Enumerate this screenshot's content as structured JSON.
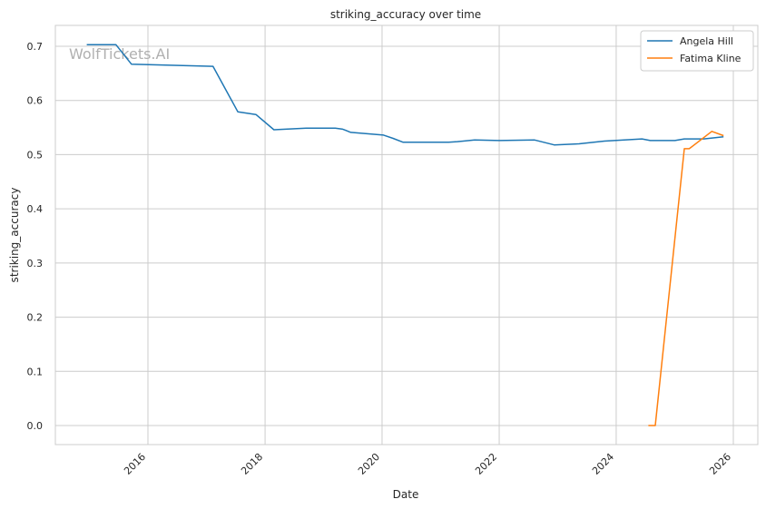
{
  "chart_data": {
    "type": "line",
    "title": "striking_accuracy over time",
    "xlabel": "Date",
    "ylabel": "striking_accuracy",
    "x_ticks": [
      "2016",
      "2018",
      "2020",
      "2022",
      "2024",
      "2026"
    ],
    "y_ticks": [
      "0.0",
      "0.1",
      "0.2",
      "0.3",
      "0.4",
      "0.5",
      "0.6",
      "0.7"
    ],
    "watermark": "WolfTickets.AI",
    "legend_position": "top-right",
    "grid": true,
    "series": [
      {
        "name": "Angela Hill",
        "color": "#1f77b4",
        "points": [
          [
            "2014-12-15",
            0.703
          ],
          [
            "2015-06-15",
            0.703
          ],
          [
            "2015-09-20",
            0.667
          ],
          [
            "2017-02-10",
            0.663
          ],
          [
            "2017-07-15",
            0.579
          ],
          [
            "2017-11-05",
            0.574
          ],
          [
            "2018-02-25",
            0.546
          ],
          [
            "2018-09-15",
            0.549
          ],
          [
            "2019-03-15",
            0.549
          ],
          [
            "2019-05-01",
            0.547
          ],
          [
            "2019-06-20",
            0.541
          ],
          [
            "2020-01-10",
            0.536
          ],
          [
            "2020-03-10",
            0.53
          ],
          [
            "2020-05-10",
            0.523
          ],
          [
            "2021-02-20",
            0.523
          ],
          [
            "2021-04-15",
            0.524
          ],
          [
            "2021-08-01",
            0.527
          ],
          [
            "2022-01-01",
            0.526
          ],
          [
            "2022-08-10",
            0.527
          ],
          [
            "2022-12-10",
            0.518
          ],
          [
            "2023-05-15",
            0.52
          ],
          [
            "2023-10-20",
            0.525
          ],
          [
            "2024-06-10",
            0.529
          ],
          [
            "2024-08-01",
            0.526
          ],
          [
            "2025-01-01",
            0.526
          ],
          [
            "2025-03-01",
            0.529
          ],
          [
            "2025-07-01",
            0.529
          ],
          [
            "2025-11-01",
            0.533
          ]
        ]
      },
      {
        "name": "Fatima Kline",
        "color": "#ff7f0e",
        "points": [
          [
            "2024-07-20",
            0.0
          ],
          [
            "2024-09-01",
            0.0
          ],
          [
            "2025-03-01",
            0.511
          ],
          [
            "2025-04-01",
            0.511
          ],
          [
            "2025-08-20",
            0.543
          ],
          [
            "2025-11-01",
            0.535
          ]
        ]
      }
    ]
  }
}
